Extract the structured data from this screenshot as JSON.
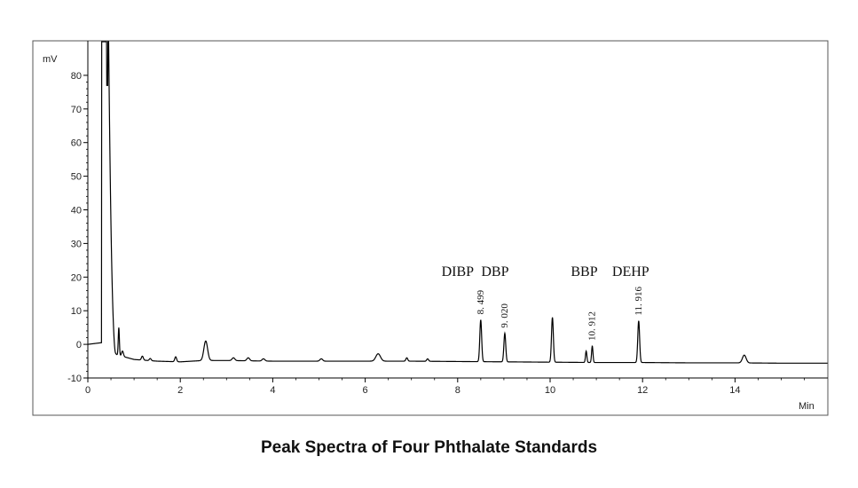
{
  "caption": "Peak Spectra of Four Phthalate Standards",
  "chart_data": {
    "type": "line",
    "title": "",
    "xlabel": "Min",
    "ylabel": "mV",
    "xlim": [
      0,
      16
    ],
    "ylim": [
      -10,
      90
    ],
    "x_ticks": [
      0,
      2,
      4,
      6,
      8,
      10,
      12,
      14
    ],
    "y_ticks": [
      -10,
      0,
      10,
      20,
      30,
      40,
      50,
      60,
      70,
      80
    ],
    "grid": false,
    "line_color": "#000000",
    "baseline": [
      [
        0.0,
        0.0
      ],
      [
        0.3,
        0.5
      ],
      [
        0.5,
        -2.0
      ],
      [
        0.6,
        -3.0
      ],
      [
        1.0,
        -4.5
      ],
      [
        1.5,
        -5.0
      ],
      [
        2.0,
        -5.2
      ],
      [
        2.5,
        -4.8
      ],
      [
        3.0,
        -4.8
      ],
      [
        4.0,
        -5.0
      ],
      [
        5.0,
        -5.0
      ],
      [
        6.0,
        -5.0
      ],
      [
        7.0,
        -5.0
      ],
      [
        8.0,
        -5.1
      ],
      [
        9.0,
        -5.2
      ],
      [
        10.0,
        -5.3
      ],
      [
        11.0,
        -5.4
      ],
      [
        12.0,
        -5.4
      ],
      [
        13.0,
        -5.5
      ],
      [
        14.0,
        -5.5
      ],
      [
        15.0,
        -5.6
      ],
      [
        16.0,
        -5.6
      ]
    ],
    "solvent_front": {
      "x": [
        0.3,
        0.45
      ],
      "clipped_at": 90,
      "dip_to": 77,
      "dip_x": 0.42
    },
    "peaks": [
      {
        "rt": 0.55,
        "height": -1.0,
        "width": 0.03
      },
      {
        "rt": 0.67,
        "height": 5.0,
        "width": 0.012
      },
      {
        "rt": 0.75,
        "height": -2.0,
        "width": 0.02
      },
      {
        "rt": 1.18,
        "height": -3.5,
        "width": 0.02
      },
      {
        "rt": 1.35,
        "height": -4.2,
        "width": 0.02
      },
      {
        "rt": 1.9,
        "height": -3.7,
        "width": 0.02
      },
      {
        "rt": 2.55,
        "height": 1.0,
        "width": 0.04
      },
      {
        "rt": 3.15,
        "height": -4.0,
        "width": 0.03
      },
      {
        "rt": 3.47,
        "height": -4.0,
        "width": 0.03
      },
      {
        "rt": 3.8,
        "height": -4.3,
        "width": 0.03
      },
      {
        "rt": 5.05,
        "height": -4.3,
        "width": 0.03
      },
      {
        "rt": 6.28,
        "height": -2.8,
        "width": 0.05
      },
      {
        "rt": 6.9,
        "height": -4.0,
        "width": 0.02
      },
      {
        "rt": 7.35,
        "height": -4.3,
        "width": 0.02
      },
      {
        "rt": 8.499,
        "height": 7.3,
        "width": 0.02
      },
      {
        "rt": 9.02,
        "height": 3.3,
        "width": 0.02
      },
      {
        "rt": 10.05,
        "height": 8.0,
        "width": 0.02
      },
      {
        "rt": 10.78,
        "height": -2.0,
        "width": 0.015
      },
      {
        "rt": 10.912,
        "height": -0.5,
        "width": 0.015
      },
      {
        "rt": 11.916,
        "height": 7.0,
        "width": 0.02
      },
      {
        "rt": 14.2,
        "height": -3.2,
        "width": 0.04
      }
    ],
    "annotations": [
      {
        "name": "DIBP",
        "rt_label": "8. 499",
        "rt": 8.499
      },
      {
        "name": "DBP",
        "rt_label": "9. 020",
        "rt": 9.02
      },
      {
        "name": "BBP",
        "rt_label": "10. 912",
        "rt": 10.912
      },
      {
        "name": "DEHP",
        "rt_label": "11. 916",
        "rt": 11.916
      }
    ]
  }
}
